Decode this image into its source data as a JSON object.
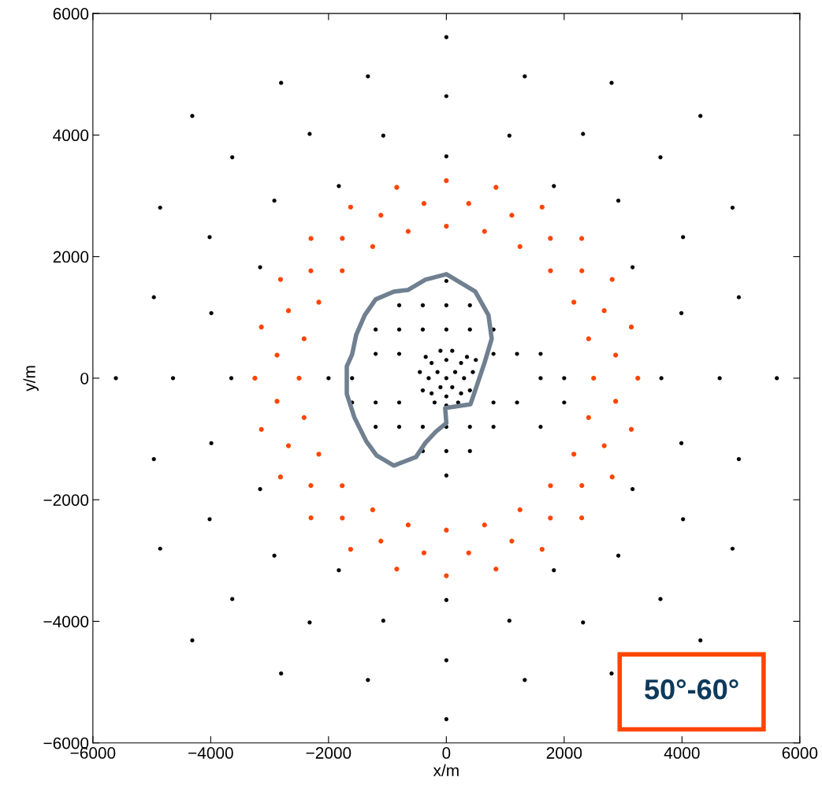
{
  "chart_data": {
    "type": "scatter",
    "xlabel": "x/m",
    "ylabel": "y/m",
    "xlim": [
      -6000,
      6000
    ],
    "ylim": [
      -6000,
      6000
    ],
    "xticks": [
      {
        "value": -6000,
        "label": "−6000"
      },
      {
        "value": -4000,
        "label": "−4000"
      },
      {
        "value": -2000,
        "label": "−2000"
      },
      0,
      2000,
      4000,
      6000
    ],
    "yticks": [
      {
        "value": -6000,
        "label": "−6000"
      },
      {
        "value": -4000,
        "label": "−4000"
      },
      {
        "value": -2000,
        "label": "−2000"
      },
      0,
      2000,
      4000,
      6000
    ],
    "grid": false,
    "legend": false,
    "marker": "circle",
    "annotations": [
      "50°-60°"
    ],
    "series": [
      {
        "color": "#000000",
        "x": [
          3650,
          3161,
          1825,
          0,
          -1825,
          -3161,
          -3650,
          -3161,
          -1825,
          0,
          1825,
          3161,
          3990,
          2920,
          1070,
          -1070,
          -2920,
          -3990,
          -3990,
          -2920,
          -1070,
          1070,
          2920,
          3990,
          4640,
          4018,
          2320,
          0,
          -2320,
          -4018,
          -4640,
          -4018,
          -2320,
          0,
          2320,
          4018,
          4965,
          3634,
          1331,
          -1331,
          -3634,
          -4965,
          -4965,
          -3634,
          -1331,
          1331,
          3634,
          4965,
          5610,
          4858,
          2805,
          0,
          -2805,
          -4858,
          -5610,
          -4858,
          -2805,
          0,
          2805,
          4858,
          4313,
          -4313,
          -4313,
          4313,
          -1200,
          -800,
          -400,
          0,
          400,
          800,
          -1200,
          -800,
          800,
          1200,
          -1200,
          -800,
          800,
          1200,
          -1200,
          -800,
          -400,
          0,
          400,
          800,
          -800,
          -400,
          0,
          400,
          -400,
          0,
          400,
          -1600,
          1600,
          2000,
          -2000,
          0,
          0,
          -1600,
          1600,
          1600,
          2000,
          0,
          150,
          -150,
          100,
          -100,
          300,
          -300,
          0,
          0,
          250,
          -250,
          250,
          -250,
          450,
          -450,
          400,
          -400,
          100,
          -100,
          200,
          -200,
          0,
          350,
          -350,
          500
        ],
        "values": [
          0,
          1825,
          3161,
          3650,
          3161,
          1825,
          0,
          -1825,
          -3161,
          -3650,
          -3161,
          -1825,
          1070,
          2920,
          3990,
          3990,
          2920,
          1070,
          -1070,
          -2920,
          -3990,
          -3990,
          -2920,
          -1070,
          0,
          2320,
          4018,
          4640,
          4018,
          2320,
          0,
          -2320,
          -4018,
          -4640,
          -4018,
          -2320,
          1331,
          3634,
          4965,
          4965,
          3634,
          1331,
          -1331,
          -3634,
          -4965,
          -4965,
          -3634,
          -1331,
          0,
          2805,
          4858,
          5610,
          4858,
          2805,
          0,
          -2805,
          -4858,
          -5610,
          -4858,
          -2805,
          4313,
          4313,
          -4313,
          -4313,
          800,
          800,
          800,
          800,
          800,
          800,
          400,
          400,
          400,
          400,
          -400,
          -400,
          -400,
          -400,
          -800,
          -800,
          -800,
          -800,
          -800,
          -800,
          1200,
          1200,
          1200,
          1200,
          -1200,
          -1200,
          -1200,
          0,
          0,
          0,
          0,
          1600,
          -1600,
          -400,
          400,
          -800,
          -400,
          0,
          100,
          100,
          -150,
          -150,
          0,
          0,
          300,
          -300,
          250,
          250,
          -250,
          -250,
          100,
          100,
          -200,
          -200,
          450,
          450,
          -400,
          -400,
          -450,
          350,
          350,
          300
        ]
      },
      {
        "color": "#ff4500",
        "x": [
          2500,
          2415,
          2165,
          1768,
          1250,
          648,
          0,
          -648,
          -1250,
          -1768,
          -2165,
          -2415,
          -2500,
          -2415,
          -2165,
          -1768,
          -1250,
          -648,
          0,
          648,
          1250,
          1768,
          2165,
          2415,
          3250,
          3140,
          2815,
          2298,
          1625,
          842,
          0,
          -842,
          -1625,
          -2298,
          -2815,
          -3140,
          -3250,
          -3140,
          -2815,
          -2298,
          -1625,
          -842,
          0,
          842,
          1625,
          2298,
          2815,
          3140,
          2874,
          2680,
          2300,
          1766,
          1111,
          380,
          -380,
          -1111,
          -1766,
          -2300,
          -2680,
          -2874,
          -2874,
          -2680,
          -2300,
          -1766,
          -1111,
          -380,
          380,
          1111,
          1766,
          2300,
          2680,
          2874
        ],
        "values": [
          0,
          648,
          1250,
          1768,
          2165,
          2415,
          2500,
          2415,
          2165,
          1768,
          1250,
          648,
          0,
          -648,
          -1250,
          -1768,
          -2165,
          -2415,
          -2500,
          -2415,
          -2165,
          -1768,
          -1250,
          -648,
          0,
          842,
          1625,
          2298,
          2815,
          3140,
          3250,
          3140,
          2815,
          2298,
          1625,
          842,
          0,
          -842,
          -1625,
          -2298,
          -2815,
          -3140,
          -3250,
          -3140,
          -2815,
          -2298,
          -1625,
          -842,
          380,
          1111,
          1766,
          2300,
          2680,
          2874,
          2874,
          2680,
          2300,
          1766,
          1111,
          380,
          -380,
          -1111,
          -1766,
          -2300,
          -2680,
          -2874,
          -2874,
          -2680,
          -2300,
          -1766,
          -1111,
          -380
        ]
      },
      {
        "type": "line",
        "color": "#708090",
        "marker": "none",
        "line_style": "solid",
        "x": [
          0,
          490,
          715,
          770,
          650,
          515,
          410,
          -20,
          0,
          -180,
          -355,
          -515,
          -890,
          -1185,
          -1360,
          -1560,
          -1690,
          -1690,
          -1600,
          -1530,
          -1385,
          -1200,
          -890,
          -650,
          -355,
          -20
        ],
        "values": [
          1710,
          1425,
          1036,
          648,
          259,
          -130,
          -428,
          -492,
          -739,
          -881,
          -1063,
          -1296,
          -1438,
          -1270,
          -1037,
          -648,
          -259,
          194,
          389,
          713,
          1037,
          1296,
          1425,
          1451,
          1620,
          1705
        ]
      }
    ]
  }
}
